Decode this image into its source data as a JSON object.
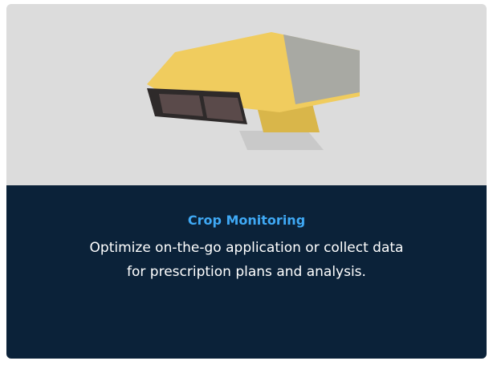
{
  "card": {
    "title": "Crop Monitoring",
    "description_lines": [
      "Optimize on-the-go application or collect data",
      "for prescription plans and analysis."
    ]
  }
}
